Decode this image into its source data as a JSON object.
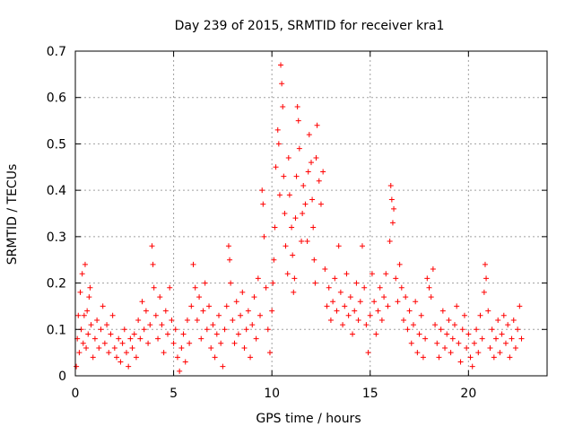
{
  "chart_data": {
    "type": "scatter",
    "title": "Day 239 of 2015, SRMTID for receiver kra1",
    "xlabel": "GPS time / hours",
    "ylabel": "SRMTID / TECUs",
    "xlim": [
      0,
      24
    ],
    "ylim": [
      0,
      0.7
    ],
    "x_ticks": [
      0,
      5,
      10,
      15,
      20
    ],
    "y_ticks": [
      0,
      0.1,
      0.2,
      0.3,
      0.4,
      0.5,
      0.6,
      0.7
    ],
    "x_tick_labels": [
      "0",
      "5",
      "10",
      "15",
      "20"
    ],
    "y_tick_labels": [
      "0",
      "0.1",
      "0.2",
      "0.3",
      "0.4",
      "0.5",
      "0.6",
      "0.7"
    ],
    "grid": true,
    "marker": "plus",
    "color": "#ff0000",
    "series": [
      {
        "name": "SRMTID",
        "points": [
          [
            0.05,
            0.02
          ],
          [
            0.1,
            0.08
          ],
          [
            0.15,
            0.13
          ],
          [
            0.2,
            0.05
          ],
          [
            0.25,
            0.18
          ],
          [
            0.3,
            0.1
          ],
          [
            0.35,
            0.22
          ],
          [
            0.4,
            0.07
          ],
          [
            0.45,
            0.13
          ],
          [
            0.5,
            0.24
          ],
          [
            0.55,
            0.06
          ],
          [
            0.6,
            0.14
          ],
          [
            0.65,
            0.09
          ],
          [
            0.7,
            0.17
          ],
          [
            0.75,
            0.19
          ],
          [
            0.8,
            0.11
          ],
          [
            0.9,
            0.04
          ],
          [
            1.0,
            0.08
          ],
          [
            1.1,
            0.12
          ],
          [
            1.2,
            0.06
          ],
          [
            1.3,
            0.1
          ],
          [
            1.4,
            0.15
          ],
          [
            1.5,
            0.07
          ],
          [
            1.6,
            0.11
          ],
          [
            1.7,
            0.05
          ],
          [
            1.8,
            0.09
          ],
          [
            1.9,
            0.13
          ],
          [
            2.0,
            0.06
          ],
          [
            2.1,
            0.04
          ],
          [
            2.2,
            0.08
          ],
          [
            2.3,
            0.03
          ],
          [
            2.4,
            0.07
          ],
          [
            2.5,
            0.1
          ],
          [
            2.6,
            0.05
          ],
          [
            2.7,
            0.02
          ],
          [
            2.8,
            0.08
          ],
          [
            2.9,
            0.06
          ],
          [
            3.0,
            0.09
          ],
          [
            3.1,
            0.04
          ],
          [
            3.2,
            0.12
          ],
          [
            3.3,
            0.08
          ],
          [
            3.4,
            0.16
          ],
          [
            3.5,
            0.1
          ],
          [
            3.6,
            0.14
          ],
          [
            3.7,
            0.07
          ],
          [
            3.8,
            0.11
          ],
          [
            3.9,
            0.28
          ],
          [
            3.95,
            0.24
          ],
          [
            4.0,
            0.19
          ],
          [
            4.1,
            0.13
          ],
          [
            4.2,
            0.08
          ],
          [
            4.3,
            0.17
          ],
          [
            4.4,
            0.11
          ],
          [
            4.5,
            0.05
          ],
          [
            4.6,
            0.14
          ],
          [
            4.7,
            0.09
          ],
          [
            4.8,
            0.19
          ],
          [
            4.9,
            0.12
          ],
          [
            5.0,
            0.07
          ],
          [
            5.1,
            0.1
          ],
          [
            5.2,
            0.04
          ],
          [
            5.3,
            0.01
          ],
          [
            5.4,
            0.06
          ],
          [
            5.5,
            0.09
          ],
          [
            5.6,
            0.03
          ],
          [
            5.7,
            0.12
          ],
          [
            5.8,
            0.07
          ],
          [
            5.9,
            0.15
          ],
          [
            6.0,
            0.24
          ],
          [
            6.1,
            0.19
          ],
          [
            6.2,
            0.12
          ],
          [
            6.3,
            0.17
          ],
          [
            6.4,
            0.08
          ],
          [
            6.5,
            0.14
          ],
          [
            6.6,
            0.2
          ],
          [
            6.7,
            0.1
          ],
          [
            6.8,
            0.15
          ],
          [
            6.9,
            0.06
          ],
          [
            7.0,
            0.11
          ],
          [
            7.1,
            0.04
          ],
          [
            7.2,
            0.09
          ],
          [
            7.3,
            0.13
          ],
          [
            7.4,
            0.07
          ],
          [
            7.5,
            0.02
          ],
          [
            7.6,
            0.1
          ],
          [
            7.7,
            0.15
          ],
          [
            7.8,
            0.28
          ],
          [
            7.85,
            0.25
          ],
          [
            7.9,
            0.2
          ],
          [
            8.0,
            0.12
          ],
          [
            8.1,
            0.07
          ],
          [
            8.2,
            0.16
          ],
          [
            8.3,
            0.09
          ],
          [
            8.4,
            0.13
          ],
          [
            8.5,
            0.18
          ],
          [
            8.6,
            0.06
          ],
          [
            8.7,
            0.1
          ],
          [
            8.8,
            0.14
          ],
          [
            8.9,
            0.04
          ],
          [
            9.0,
            0.11
          ],
          [
            9.1,
            0.17
          ],
          [
            9.2,
            0.08
          ],
          [
            9.3,
            0.21
          ],
          [
            9.4,
            0.13
          ],
          [
            9.5,
            0.4
          ],
          [
            9.55,
            0.37
          ],
          [
            9.6,
            0.3
          ],
          [
            9.7,
            0.19
          ],
          [
            9.8,
            0.1
          ],
          [
            9.9,
            0.05
          ],
          [
            10.0,
            0.14
          ],
          [
            10.05,
            0.2
          ],
          [
            10.1,
            0.25
          ],
          [
            10.15,
            0.32
          ],
          [
            10.2,
            0.45
          ],
          [
            10.3,
            0.53
          ],
          [
            10.35,
            0.5
          ],
          [
            10.4,
            0.39
          ],
          [
            10.45,
            0.67
          ],
          [
            10.5,
            0.63
          ],
          [
            10.55,
            0.58
          ],
          [
            10.6,
            0.43
          ],
          [
            10.65,
            0.35
          ],
          [
            10.7,
            0.28
          ],
          [
            10.8,
            0.22
          ],
          [
            10.85,
            0.47
          ],
          [
            10.9,
            0.39
          ],
          [
            11.0,
            0.32
          ],
          [
            11.05,
            0.26
          ],
          [
            11.1,
            0.18
          ],
          [
            11.15,
            0.21
          ],
          [
            11.2,
            0.34
          ],
          [
            11.25,
            0.43
          ],
          [
            11.3,
            0.58
          ],
          [
            11.35,
            0.55
          ],
          [
            11.4,
            0.49
          ],
          [
            11.5,
            0.29
          ],
          [
            11.55,
            0.35
          ],
          [
            11.6,
            0.41
          ],
          [
            11.7,
            0.37
          ],
          [
            11.8,
            0.29
          ],
          [
            11.85,
            0.44
          ],
          [
            11.9,
            0.52
          ],
          [
            12.0,
            0.46
          ],
          [
            12.05,
            0.38
          ],
          [
            12.1,
            0.32
          ],
          [
            12.15,
            0.25
          ],
          [
            12.2,
            0.2
          ],
          [
            12.25,
            0.47
          ],
          [
            12.3,
            0.54
          ],
          [
            12.4,
            0.42
          ],
          [
            12.5,
            0.37
          ],
          [
            12.6,
            0.44
          ],
          [
            12.7,
            0.23
          ],
          [
            12.8,
            0.15
          ],
          [
            12.9,
            0.19
          ],
          [
            13.0,
            0.12
          ],
          [
            13.1,
            0.16
          ],
          [
            13.2,
            0.21
          ],
          [
            13.3,
            0.14
          ],
          [
            13.4,
            0.28
          ],
          [
            13.5,
            0.18
          ],
          [
            13.6,
            0.11
          ],
          [
            13.7,
            0.15
          ],
          [
            13.8,
            0.22
          ],
          [
            13.9,
            0.13
          ],
          [
            14.0,
            0.17
          ],
          [
            14.1,
            0.09
          ],
          [
            14.2,
            0.14
          ],
          [
            14.3,
            0.2
          ],
          [
            14.4,
            0.12
          ],
          [
            14.5,
            0.16
          ],
          [
            14.6,
            0.28
          ],
          [
            14.7,
            0.19
          ],
          [
            14.8,
            0.11
          ],
          [
            14.9,
            0.05
          ],
          [
            15.0,
            0.13
          ],
          [
            15.1,
            0.22
          ],
          [
            15.2,
            0.16
          ],
          [
            15.3,
            0.09
          ],
          [
            15.4,
            0.14
          ],
          [
            15.5,
            0.19
          ],
          [
            15.6,
            0.12
          ],
          [
            15.7,
            0.17
          ],
          [
            15.8,
            0.22
          ],
          [
            15.9,
            0.15
          ],
          [
            16.0,
            0.29
          ],
          [
            16.05,
            0.41
          ],
          [
            16.1,
            0.38
          ],
          [
            16.15,
            0.33
          ],
          [
            16.2,
            0.36
          ],
          [
            16.3,
            0.21
          ],
          [
            16.4,
            0.16
          ],
          [
            16.5,
            0.24
          ],
          [
            16.6,
            0.19
          ],
          [
            16.7,
            0.12
          ],
          [
            16.8,
            0.17
          ],
          [
            16.9,
            0.1
          ],
          [
            17.0,
            0.14
          ],
          [
            17.1,
            0.07
          ],
          [
            17.2,
            0.11
          ],
          [
            17.3,
            0.16
          ],
          [
            17.4,
            0.05
          ],
          [
            17.5,
            0.09
          ],
          [
            17.6,
            0.13
          ],
          [
            17.7,
            0.04
          ],
          [
            17.8,
            0.08
          ],
          [
            17.9,
            0.21
          ],
          [
            18.0,
            0.19
          ],
          [
            18.1,
            0.17
          ],
          [
            18.2,
            0.23
          ],
          [
            18.3,
            0.11
          ],
          [
            18.4,
            0.07
          ],
          [
            18.5,
            0.04
          ],
          [
            18.6,
            0.1
          ],
          [
            18.7,
            0.14
          ],
          [
            18.8,
            0.06
          ],
          [
            18.9,
            0.09
          ],
          [
            19.0,
            0.12
          ],
          [
            19.1,
            0.05
          ],
          [
            19.2,
            0.08
          ],
          [
            19.3,
            0.11
          ],
          [
            19.4,
            0.15
          ],
          [
            19.5,
            0.07
          ],
          [
            19.6,
            0.03
          ],
          [
            19.7,
            0.1
          ],
          [
            19.8,
            0.13
          ],
          [
            19.9,
            0.06
          ],
          [
            20.0,
            0.09
          ],
          [
            20.1,
            0.04
          ],
          [
            20.2,
            0.02
          ],
          [
            20.3,
            0.07
          ],
          [
            20.4,
            0.1
          ],
          [
            20.5,
            0.05
          ],
          [
            20.6,
            0.13
          ],
          [
            20.7,
            0.08
          ],
          [
            20.8,
            0.18
          ],
          [
            20.85,
            0.24
          ],
          [
            20.9,
            0.21
          ],
          [
            21.0,
            0.14
          ],
          [
            21.1,
            0.06
          ],
          [
            21.2,
            0.1
          ],
          [
            21.3,
            0.04
          ],
          [
            21.4,
            0.08
          ],
          [
            21.5,
            0.12
          ],
          [
            21.6,
            0.05
          ],
          [
            21.7,
            0.09
          ],
          [
            21.8,
            0.13
          ],
          [
            21.9,
            0.07
          ],
          [
            22.0,
            0.11
          ],
          [
            22.1,
            0.04
          ],
          [
            22.2,
            0.08
          ],
          [
            22.3,
            0.12
          ],
          [
            22.4,
            0.06
          ],
          [
            22.5,
            0.1
          ],
          [
            22.6,
            0.15
          ],
          [
            22.7,
            0.08
          ]
        ]
      }
    ]
  }
}
